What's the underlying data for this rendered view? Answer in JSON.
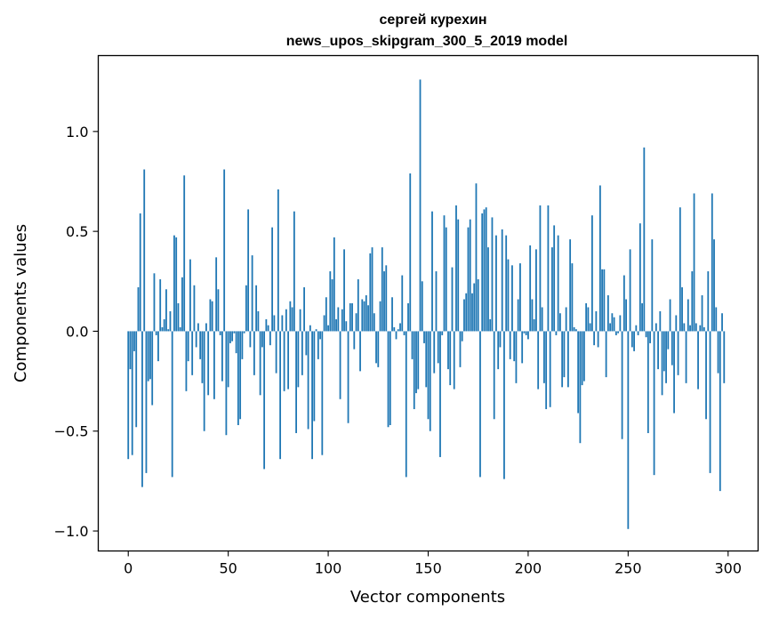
{
  "chart_data": {
    "type": "bar",
    "title": "сергей курехин",
    "subtitle": "news_upos_skipgram_300_5_2019 model",
    "xlabel": "Vector components",
    "ylabel": "Components values",
    "xlim": [
      -15,
      315
    ],
    "ylim": [
      -1.1,
      1.38
    ],
    "x_ticks": [
      0,
      50,
      100,
      150,
      200,
      250,
      300
    ],
    "x_tick_labels": [
      "0",
      "50",
      "100",
      "150",
      "200",
      "250",
      "300"
    ],
    "y_ticks": [
      -1.0,
      -0.5,
      0.0,
      0.5,
      1.0
    ],
    "y_tick_labels": [
      "−1.0",
      "−0.5",
      "0.0",
      "0.5",
      "1.0"
    ],
    "bar_color": "#1f77b4",
    "grid": false,
    "values": [
      -0.64,
      -0.19,
      -0.62,
      -0.1,
      -0.48,
      0.22,
      0.59,
      -0.78,
      0.81,
      -0.71,
      -0.25,
      -0.24,
      -0.37,
      0.29,
      -0.02,
      -0.15,
      0.26,
      0.02,
      0.06,
      0.21,
      0.01,
      0.1,
      -0.73,
      0.48,
      0.47,
      0.14,
      0.02,
      0.27,
      0.78,
      -0.3,
      -0.15,
      0.36,
      -0.22,
      0.23,
      -0.08,
      0.04,
      -0.14,
      -0.26,
      -0.5,
      0.04,
      -0.32,
      0.16,
      0.15,
      -0.34,
      0.37,
      0.21,
      -0.02,
      -0.25,
      0.81,
      -0.52,
      -0.28,
      -0.06,
      -0.05,
      -0.01,
      -0.11,
      -0.47,
      -0.44,
      -0.14,
      -0.01,
      0.23,
      0.61,
      -0.08,
      0.38,
      -0.22,
      0.23,
      0.1,
      -0.32,
      -0.08,
      -0.69,
      0.06,
      0.03,
      -0.07,
      0.52,
      0.08,
      -0.21,
      0.71,
      -0.64,
      0.08,
      -0.3,
      0.11,
      -0.29,
      0.15,
      0.12,
      0.6,
      -0.51,
      -0.28,
      0.11,
      -0.22,
      0.22,
      -0.12,
      -0.49,
      0.03,
      -0.64,
      -0.45,
      0.01,
      -0.14,
      -0.04,
      -0.62,
      0.08,
      0.17,
      0.03,
      0.3,
      0.26,
      0.47,
      0.06,
      0.12,
      -0.34,
      0.11,
      0.41,
      0.05,
      -0.46,
      0.14,
      0.14,
      -0.09,
      0.09,
      0.26,
      -0.2,
      0.16,
      0.15,
      0.18,
      0.13,
      0.39,
      0.42,
      0.09,
      -0.16,
      -0.18,
      0.15,
      0.42,
      0.3,
      0.33,
      -0.48,
      -0.47,
      0.17,
      0.02,
      -0.04,
      0.01,
      0.04,
      0.28,
      -0.02,
      -0.73,
      0.14,
      0.79,
      -0.14,
      -0.39,
      -0.31,
      -0.29,
      1.26,
      0.25,
      -0.06,
      -0.28,
      -0.44,
      -0.5,
      0.6,
      -0.21,
      0.3,
      -0.16,
      -0.63,
      -0.02,
      0.58,
      0.52,
      -0.19,
      -0.27,
      0.32,
      -0.29,
      0.63,
      0.56,
      -0.18,
      -0.05,
      0.16,
      0.19,
      0.52,
      0.56,
      0.19,
      0.24,
      0.74,
      0.26,
      -0.73,
      0.59,
      0.61,
      0.62,
      0.42,
      0.06,
      0.57,
      -0.44,
      0.48,
      -0.19,
      -0.08,
      0.51,
      -0.74,
      0.48,
      0.36,
      -0.14,
      0.33,
      -0.15,
      -0.26,
      0.16,
      0.34,
      -0.16,
      -0.01,
      -0.02,
      -0.04,
      0.43,
      0.16,
      0.06,
      0.41,
      -0.29,
      0.63,
      0.12,
      -0.26,
      -0.39,
      0.63,
      -0.38,
      0.42,
      0.53,
      -0.02,
      0.48,
      0.09,
      -0.28,
      -0.23,
      0.12,
      -0.28,
      0.46,
      0.34,
      0.02,
      0.01,
      -0.41,
      -0.56,
      -0.27,
      -0.25,
      0.14,
      0.12,
      0.04,
      0.58,
      -0.07,
      0.1,
      -0.08,
      0.73,
      0.31,
      0.31,
      -0.23,
      0.18,
      0.04,
      0.09,
      0.07,
      -0.02,
      -0.01,
      0.08,
      -0.54,
      0.28,
      0.16,
      -0.99,
      0.41,
      -0.08,
      -0.1,
      0.03,
      -0.02,
      0.54,
      0.14,
      0.92,
      -0.03,
      -0.51,
      -0.06,
      0.46,
      -0.72,
      0.04,
      -0.19,
      0.1,
      -0.32,
      -0.2,
      -0.26,
      -0.09,
      0.16,
      -0.17,
      -0.41,
      0.08,
      -0.22,
      0.62,
      0.22,
      0.04,
      -0.26,
      0.16,
      0.03,
      0.3,
      0.69,
      0.04,
      -0.29,
      0.03,
      0.18,
      0.02,
      -0.44,
      0.3,
      -0.71,
      0.69,
      0.46,
      0.12,
      -0.21,
      -0.8,
      0.09,
      -0.26
    ]
  }
}
